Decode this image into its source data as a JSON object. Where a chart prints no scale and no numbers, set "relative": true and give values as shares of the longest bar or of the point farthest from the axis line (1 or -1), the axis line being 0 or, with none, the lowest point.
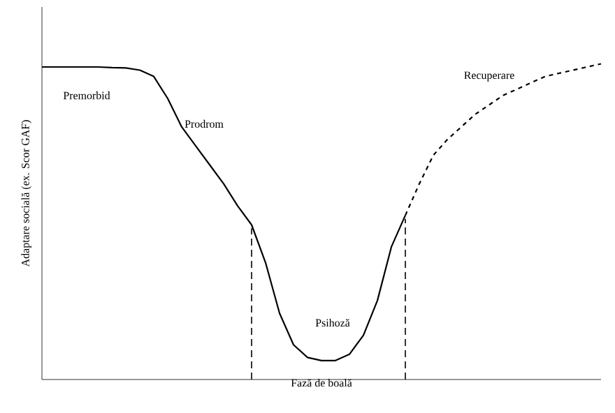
{
  "chart_data": {
    "type": "line",
    "relative": true,
    "xlabel": "Fază de boală",
    "ylabel": "Adaptare socială (ex. Scor GAF)",
    "marker": "none",
    "categories": [
      null,
      null,
      null,
      null,
      null,
      null,
      null,
      null,
      null,
      null,
      null,
      null,
      null,
      null,
      null,
      null,
      null,
      null,
      null,
      null,
      null,
      null,
      null,
      null,
      null,
      null,
      null,
      null,
      null,
      null,
      null,
      null,
      null,
      null,
      null,
      null,
      null,
      null,
      null,
      null,
      null
    ],
    "series": [
      {
        "color": "#000000",
        "line_style": "solid",
        "values": [
          0.99,
          0.99,
          0.99,
          0.99,
          0.99,
          0.988,
          0.987,
          0.98,
          0.96,
          0.89,
          0.8,
          0.74,
          0.68,
          0.62,
          0.55,
          0.49,
          0.37,
          0.21,
          0.11,
          0.07,
          0.06,
          0.06,
          0.08,
          0.14,
          0.25,
          0.42,
          0.52,
          null,
          null,
          null,
          null,
          null,
          null,
          null,
          null,
          null,
          null,
          null,
          null,
          null,
          null
        ]
      },
      {
        "color": "#000000",
        "line_style": "dashed",
        "values": [
          null,
          null,
          null,
          null,
          null,
          null,
          null,
          null,
          null,
          null,
          null,
          null,
          null,
          null,
          null,
          null,
          null,
          null,
          null,
          null,
          null,
          null,
          null,
          null,
          null,
          null,
          0.52,
          0.62,
          0.71,
          0.76,
          0.8,
          0.84,
          0.87,
          0.9,
          0.92,
          0.94,
          0.96,
          0.97,
          0.98,
          0.99,
          1.0
        ]
      }
    ],
    "annotations": [
      "Premorbid",
      "Prodrom",
      "Psihoză",
      "Recuperare"
    ]
  }
}
